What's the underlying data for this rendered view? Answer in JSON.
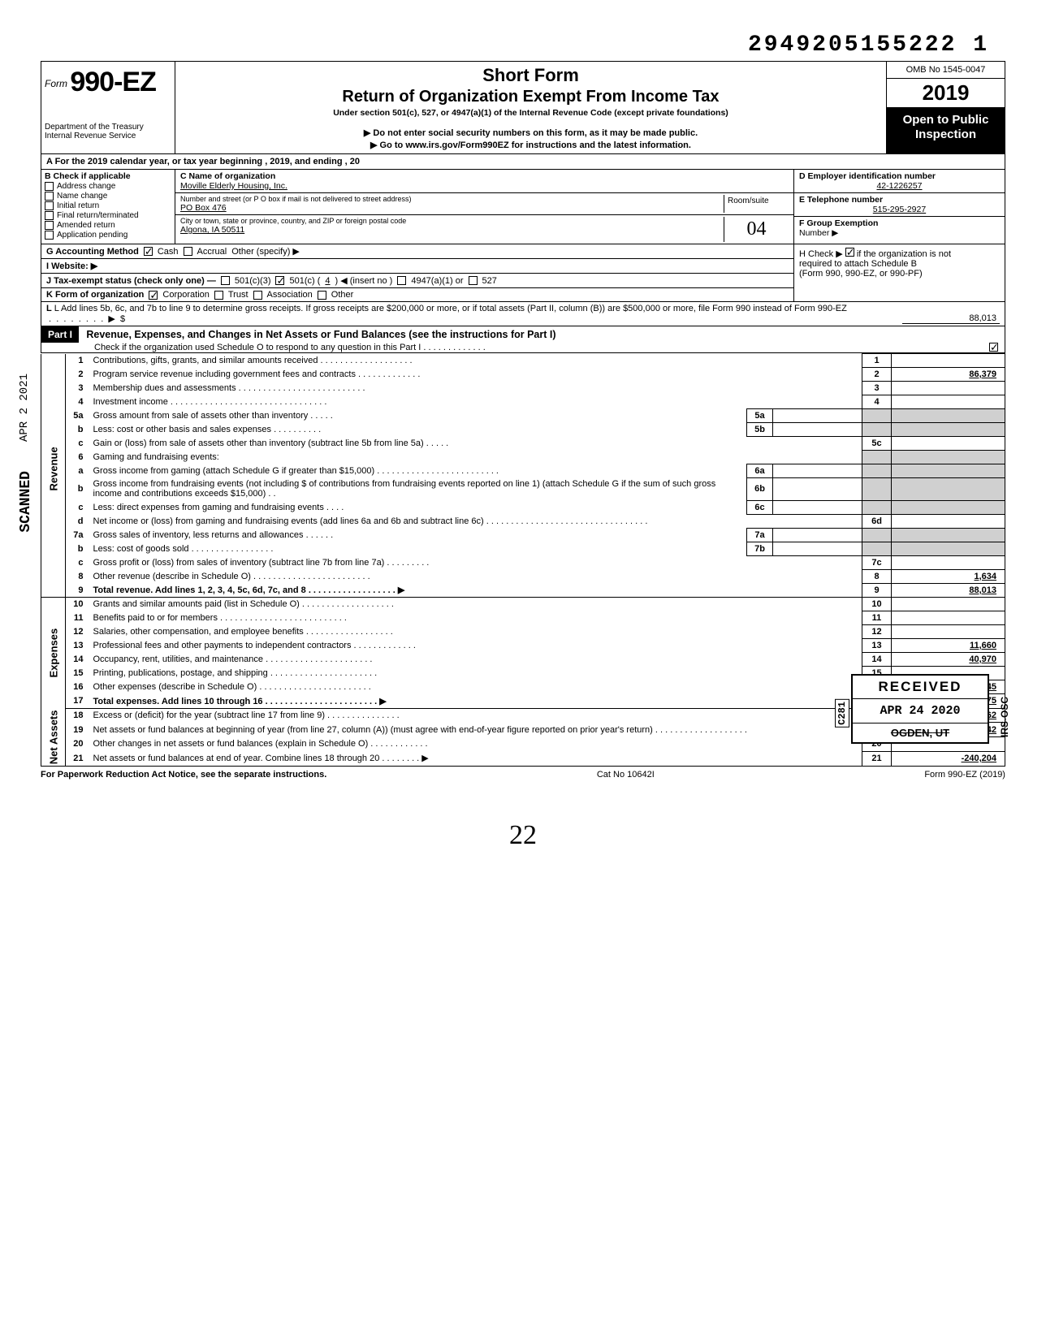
{
  "top_number": "2949205155222 1",
  "omb": "OMB No 1545-0047",
  "form_number": "990-EZ",
  "form_prefix": "Form",
  "short_form": "Short Form",
  "return_title": "Return of Organization Exempt From Income Tax",
  "under_section": "Under section 501(c), 527, or 4947(a)(1) of the Internal Revenue Code (except private foundations)",
  "do_not_enter": "▶ Do not enter social security numbers on this form, as it may be made public.",
  "goto": "▶ Go to www.irs.gov/Form990EZ for instructions and the latest information.",
  "year": "2019",
  "open_public_1": "Open to Public",
  "open_public_2": "Inspection",
  "dept1": "Department of the Treasury",
  "dept2": "Internal Revenue Service",
  "row_a": "A For the 2019 calendar year, or tax year beginning                                                                                           , 2019, and ending                                                          , 20",
  "b_header": "B Check if applicable",
  "b_items": [
    "Address change",
    "Name change",
    "Initial return",
    "Final return/terminated",
    "Amended return",
    "Application pending"
  ],
  "c_label": "C Name of organization",
  "org_name": "Moville Elderly Housing, Inc.",
  "street_label": "Number and street (or P O box if mail is not delivered to street address)",
  "street": "PO Box 476",
  "city_label": "City or town, state or province, country, and ZIP or foreign postal code",
  "city": "Algona, IA 50511",
  "room_suite_label": "Room/suite",
  "room_suite": "04",
  "d_label": "D Employer identification number",
  "ein": "42-1226257",
  "e_label": "E Telephone number",
  "phone": "515-295-2927",
  "f_label": "F Group Exemption",
  "f_label2": "Number ▶",
  "g_label": "G Accounting Method",
  "g_cash": "Cash",
  "g_accrual": "Accrual",
  "g_other": "Other (specify) ▶",
  "i_label": "I Website: ▶",
  "j_label": "J Tax-exempt status (check only one) —",
  "j_501c3": "501(c)(3)",
  "j_501c": "501(c) (",
  "j_insert": "4",
  "j_insert_end": ") ◀ (insert no )",
  "j_4947": "4947(a)(1) or",
  "j_527": "527",
  "k_label": "K Form of organization",
  "k_corp": "Corporation",
  "k_trust": "Trust",
  "k_assoc": "Association",
  "k_other": "Other",
  "h_text1": "H Check ▶",
  "h_text2": "if the organization is not",
  "h_text3": "required to attach Schedule B",
  "h_text4": "(Form 990, 990-EZ, or 990-PF)",
  "l_text": "L Add lines 5b, 6c, and 7b to line 9 to determine gross receipts. If gross receipts are $200,000 or more, or if total assets (Part II, column (B)) are $500,000 or more, file Form 990 instead of Form 990-EZ",
  "l_amount": "88,013",
  "part1_label": "Part I",
  "part1_title": "Revenue, Expenses, and Changes in Net Assets or Fund Balances (see the instructions for Part I)",
  "part1_sub": "Check if the organization used Schedule O to respond to any question in this Part I . . . . . . . . . . . . .",
  "lines": {
    "1": {
      "desc": "Contributions, gifts, grants, and similar amounts received . . . . . . . . . . . . . . . . . . .",
      "val": ""
    },
    "2": {
      "desc": "Program service revenue including government fees and contracts  . . . . . . . . . . . . .",
      "val": "86,379"
    },
    "3": {
      "desc": "Membership dues and assessments . . . . . . . . . . . . . . . . . . . . . . . . . .",
      "val": ""
    },
    "4": {
      "desc": "Investment income  . . . . . . . . . . . . . . . . . . . . . . . . . . . . . . . .",
      "val": ""
    },
    "5a": {
      "desc": "Gross amount from sale of assets other than inventory  . . . . ."
    },
    "5b": {
      "desc": "Less: cost or other basis and sales expenses . . . . . . . . . ."
    },
    "5c": {
      "desc": "Gain or (loss) from sale of assets other than inventory (subtract line 5b from line 5a) . . . . .",
      "val": ""
    },
    "6": {
      "desc": "Gaming and fundraising events:"
    },
    "6a": {
      "desc": "Gross income from gaming (attach Schedule G if greater than $15,000) . . . . . . . . . . . . . . . . . . . . . . . . ."
    },
    "6b": {
      "desc": "Gross income from fundraising events (not including  $                                of contributions from fundraising events reported on line 1) (attach Schedule G if the sum of such gross income and contributions exceeds $15,000) . ."
    },
    "6c": {
      "desc": "Less: direct expenses from gaming and fundraising events  . . . ."
    },
    "6d": {
      "desc": "Net income or (loss) from gaming and fundraising events (add lines 6a and 6b and subtract line 6c)  . . . . . . . . . . . . . . . . . . . . . . . . . . . . . . . . .",
      "val": ""
    },
    "7a": {
      "desc": "Gross sales of inventory, less returns and allowances . . . . . ."
    },
    "7b": {
      "desc": "Less: cost of goods sold  . . . . . . . . . . . . . . . . ."
    },
    "7c": {
      "desc": "Gross profit or (loss) from sales of inventory (subtract line 7b from line 7a) . . . . . . . . .",
      "val": ""
    },
    "8": {
      "desc": "Other revenue (describe in Schedule O) . . . . . . . . . . . . . . . . . . . . . . . .",
      "val": "1,634"
    },
    "9": {
      "desc": "Total revenue. Add lines 1, 2, 3, 4, 5c, 6d, 7c, and 8  . . . . . . . . . . . . . . . . . .  ▶",
      "val": "88,013"
    },
    "10": {
      "desc": "Grants and similar amounts paid (list in Schedule O)  . . . . . . . . . . . . . . . . . . .",
      "val": ""
    },
    "11": {
      "desc": "Benefits paid to or for members  . . . . . . . . . . . . . . . . . . . . . . . . . .",
      "val": ""
    },
    "12": {
      "desc": "Salaries, other compensation, and employee benefits . . . . . . . . . . . . . . . . . .",
      "val": ""
    },
    "13": {
      "desc": "Professional fees and other payments to independent contractors . . . . . . . . . . . . .",
      "val": "11,660"
    },
    "14": {
      "desc": "Occupancy, rent, utilities, and maintenance  . . . . . . . . . . . . . . . . . . . . . .",
      "val": "40,970"
    },
    "15": {
      "desc": "Printing, publications, postage, and shipping . . . . . . . . . . . . . . . . . . . . . .",
      "val": ""
    },
    "16": {
      "desc": "Other expenses (describe in Schedule O) . . . . . . . . . . . . . . . . . . . . . . .",
      "val": "36,545"
    },
    "17": {
      "desc": "Total expenses. Add lines 10 through 16 . . . . . . . . . . . . . . . . . . . . . . .  ▶",
      "val": "89,175"
    },
    "18": {
      "desc": "Excess or (deficit) for the year (subtract line 17 from line 9)  . . . . . . . . . . . . . . .",
      "val": "-1,162"
    },
    "19": {
      "desc": "Net assets or fund balances at beginning of year (from line 27, column (A)) (must agree with end-of-year figure reported on prior year's return)  . . . . . . . . . . . . . . . . . . .",
      "val": "-239,042"
    },
    "20": {
      "desc": "Other changes in net assets or fund balances (explain in Schedule O) . . . . . . . . . . . .",
      "val": ""
    },
    "21": {
      "desc": "Net assets or fund balances at end of year. Combine lines 18 through 20  . . . . . . . .  ▶",
      "val": "-240,204"
    }
  },
  "side_labels": {
    "revenue": "Revenue",
    "expenses": "Expenses",
    "netassets": "Net Assets"
  },
  "stamp": {
    "received": "RECEIVED",
    "c281": "C281",
    "date": "APR 24 2020",
    "ogden": "OGDEN,",
    "ut": " UT",
    "irs_osc": "IRS-OSC"
  },
  "scanned": "SCANNED",
  "apr_stamp": "APR 2 2021",
  "footer": {
    "left": "For Paperwork Reduction Act Notice, see the separate instructions.",
    "mid": "Cat No 10642I",
    "right": "Form 990-EZ (2019)"
  },
  "page_num": "22",
  "colors": {
    "black": "#000000",
    "shade": "#d0d0d0",
    "white": "#ffffff"
  }
}
